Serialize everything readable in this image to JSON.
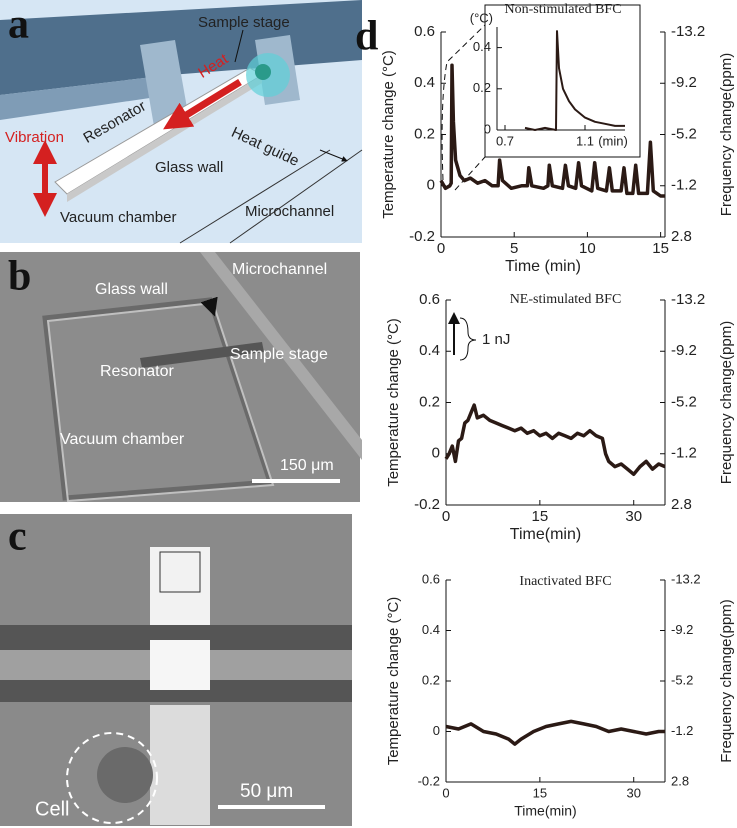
{
  "figure": {
    "panel_labels": [
      "a",
      "b",
      "c",
      "d"
    ]
  },
  "panel_a": {
    "labels": [
      "Sample stage",
      "Heat",
      "Resonator",
      "Vibration",
      "Heat guide",
      "Glass wall",
      "Vacuum chamber",
      "Microchannel"
    ]
  },
  "panel_b": {
    "labels": [
      "Microchannel",
      "Glass wall",
      "Sample stage",
      "Resonator",
      "Vacuum chamber"
    ],
    "scale_bar": "150 μm"
  },
  "panel_c": {
    "labels": [
      "Cell"
    ],
    "scale_bar": "50 μm"
  },
  "chart_data": [
    {
      "type": "line",
      "title": "Non-stimulated BFC",
      "xlabel": "Time (min)",
      "ylabel": "Temperature change (°C)",
      "y2label": "Frequency change(ppm)",
      "xlim": [
        0,
        15.3
      ],
      "xticks": [
        0,
        5,
        10,
        15
      ],
      "ylim": [
        -0.2,
        0.6
      ],
      "yticks": [
        -0.2,
        0,
        0.2,
        0.4,
        0.6
      ],
      "y2lim": [
        2.8,
        -13.2
      ],
      "y2ticks": [
        2.8,
        -1.2,
        -5.2,
        -9.2,
        -13.2
      ],
      "color": "#2b1a15",
      "x": [
        0,
        0.3,
        0.6,
        0.7,
        0.75,
        0.85,
        1.0,
        1.3,
        1.6,
        2.0,
        2.5,
        3.0,
        3.5,
        3.9,
        4.0,
        4.2,
        4.8,
        5.5,
        5.9,
        6.0,
        6.2,
        7.0,
        7.3,
        7.4,
        7.6,
        8.3,
        8.5,
        8.7,
        9.2,
        9.4,
        9.6,
        10.3,
        10.5,
        10.7,
        11.3,
        11.5,
        11.7,
        12.3,
        12.5,
        12.7,
        13.1,
        13.3,
        13.5,
        14.1,
        14.3,
        14.5,
        15.0,
        15.3
      ],
      "values": [
        0.02,
        -0.01,
        0.0,
        0.01,
        0.47,
        0.25,
        0.1,
        0.04,
        0.02,
        0.03,
        0.01,
        0.02,
        0.0,
        0.0,
        0.1,
        0.02,
        -0.01,
        0.0,
        0.0,
        0.07,
        0.0,
        -0.01,
        0.0,
        0.08,
        0.0,
        -0.01,
        0.08,
        0.0,
        -0.01,
        0.09,
        0.0,
        -0.02,
        0.09,
        -0.01,
        -0.02,
        0.07,
        -0.02,
        -0.02,
        0.07,
        -0.03,
        -0.03,
        0.08,
        -0.03,
        -0.03,
        0.17,
        -0.02,
        -0.04,
        -0.04
      ]
    },
    {
      "type": "line",
      "xlabel": "(min)",
      "ylabel": "(°C)",
      "xlim": [
        0.66,
        1.3
      ],
      "xticks": [
        0.7,
        1.1
      ],
      "ylim": [
        0,
        0.5
      ],
      "yticks": [
        0,
        0.2,
        0.4
      ],
      "color": "#2b1a15",
      "x": [
        0.8,
        0.85,
        0.9,
        0.955,
        0.96,
        0.97,
        0.99,
        1.02,
        1.05,
        1.1,
        1.15,
        1.2,
        1.25,
        1.3
      ],
      "values": [
        0.01,
        0.0,
        0.01,
        0.0,
        0.48,
        0.3,
        0.2,
        0.14,
        0.1,
        0.06,
        0.04,
        0.03,
        0.02,
        0.02
      ]
    },
    {
      "type": "line",
      "title": "NE-stimulated BFC",
      "annotation": "1 nJ",
      "xlabel": "Time(min)",
      "ylabel": "Temperature change (°C)",
      "y2label": "Frequency change(ppm)",
      "xlim": [
        0,
        35
      ],
      "xticks": [
        0,
        15,
        30
      ],
      "ylim": [
        -0.2,
        0.6
      ],
      "yticks": [
        -0.2,
        0,
        0.2,
        0.4,
        0.6
      ],
      "y2lim": [
        2.8,
        -13.2
      ],
      "y2ticks": [
        2.8,
        -1.2,
        -5.2,
        -9.2,
        -13.2
      ],
      "color": "#2b1a15",
      "x": [
        0,
        0.5,
        1,
        1.5,
        2,
        2.5,
        3,
        3.5,
        4,
        4.5,
        5,
        6,
        7,
        8,
        9,
        10,
        11,
        12,
        13,
        14,
        15,
        16,
        17,
        18,
        19,
        20,
        21,
        22,
        23,
        24,
        25,
        25.5,
        26,
        27,
        28,
        29,
        30,
        31,
        32,
        33,
        34,
        35
      ],
      "values": [
        -0.02,
        0.0,
        0.03,
        -0.03,
        0.05,
        0.06,
        0.12,
        0.13,
        0.16,
        0.19,
        0.14,
        0.15,
        0.13,
        0.12,
        0.11,
        0.1,
        0.09,
        0.1,
        0.08,
        0.09,
        0.07,
        0.08,
        0.06,
        0.08,
        0.07,
        0.06,
        0.08,
        0.07,
        0.09,
        0.07,
        0.06,
        0.0,
        -0.03,
        -0.05,
        -0.04,
        -0.06,
        -0.08,
        -0.05,
        -0.03,
        -0.06,
        -0.04,
        -0.05
      ]
    },
    {
      "type": "line",
      "title": "Inactivated BFC",
      "xlabel": "Time(min)",
      "ylabel": "Temperature change (°C)",
      "y2label": "Frequency change(ppm)",
      "xlim": [
        0,
        35
      ],
      "xticks": [
        0,
        15,
        30
      ],
      "ylim": [
        -0.2,
        0.6
      ],
      "yticks": [
        -0.2,
        0,
        0.2,
        0.4,
        0.6
      ],
      "y2lim": [
        2.8,
        -13.2
      ],
      "y2ticks": [
        2.8,
        -1.2,
        -5.2,
        -9.2,
        -13.2
      ],
      "color": "#2b1a15",
      "x": [
        0,
        2,
        4,
        6,
        8,
        10,
        11,
        12,
        14,
        16,
        18,
        20,
        22,
        24,
        26,
        28,
        30,
        32,
        34,
        35
      ],
      "values": [
        0.02,
        0.01,
        0.03,
        0.0,
        -0.01,
        -0.03,
        -0.05,
        -0.03,
        0.0,
        0.02,
        0.03,
        0.04,
        0.03,
        0.02,
        0.0,
        0.01,
        0.0,
        -0.01,
        0.0,
        0.0
      ]
    }
  ]
}
